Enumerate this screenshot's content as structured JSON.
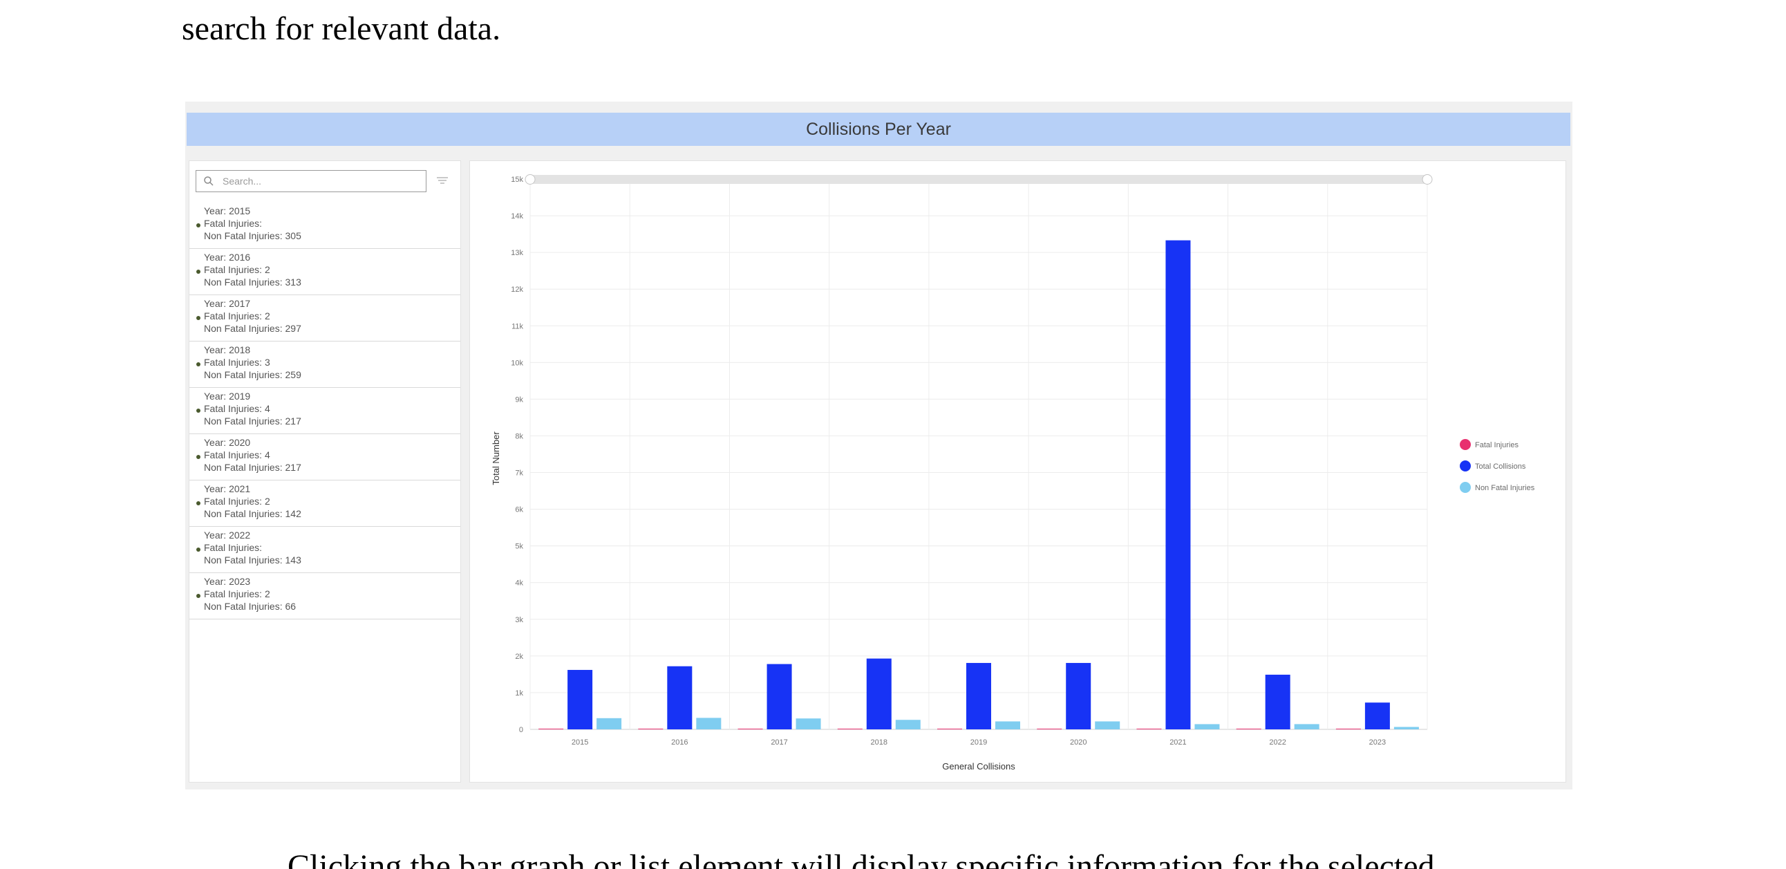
{
  "document": {
    "top_text": "search for relevant data.",
    "bottom_text": "Clicking the bar graph or list element will display specific information for the selected"
  },
  "dashboard": {
    "title": "Collisions Per Year",
    "search": {
      "placeholder": "Search..."
    },
    "list_items": [
      {
        "year_label": "Year: 2015",
        "fatal_label": "Fatal Injuries:",
        "fatal_value": "",
        "nonfatal_label": "Non Fatal Injuries: 305"
      },
      {
        "year_label": "Year: 2016",
        "fatal_label": "Fatal Injuries:",
        "fatal_value": "2",
        "nonfatal_label": "Non Fatal Injuries: 313"
      },
      {
        "year_label": "Year: 2017",
        "fatal_label": "Fatal Injuries:",
        "fatal_value": "2",
        "nonfatal_label": "Non Fatal Injuries: 297"
      },
      {
        "year_label": "Year: 2018",
        "fatal_label": "Fatal Injuries:",
        "fatal_value": "3",
        "nonfatal_label": "Non Fatal Injuries: 259"
      },
      {
        "year_label": "Year: 2019",
        "fatal_label": "Fatal Injuries:",
        "fatal_value": "4",
        "nonfatal_label": "Non Fatal Injuries: 217"
      },
      {
        "year_label": "Year: 2020",
        "fatal_label": "Fatal Injuries:",
        "fatal_value": "4",
        "nonfatal_label": "Non Fatal Injuries: 217"
      },
      {
        "year_label": "Year: 2021",
        "fatal_label": "Fatal Injuries:",
        "fatal_value": "2",
        "nonfatal_label": "Non Fatal Injuries: 142"
      },
      {
        "year_label": "Year: 2022",
        "fatal_label": "Fatal Injuries:",
        "fatal_value": "",
        "nonfatal_label": "Non Fatal Injuries: 143"
      },
      {
        "year_label": "Year: 2023",
        "fatal_label": "Fatal Injuries:",
        "fatal_value": "2",
        "nonfatal_label": "Non Fatal Injuries: 66"
      }
    ],
    "icons": {
      "search": "search-icon",
      "filter": "filter-icon",
      "scrollbar_grip": "grip-icon"
    }
  },
  "chart_data": {
    "type": "bar",
    "title": "",
    "xlabel": "General Collisions",
    "ylabel": "Total Number",
    "categories": [
      "2015",
      "2016",
      "2017",
      "2018",
      "2019",
      "2020",
      "2021",
      "2022",
      "2023"
    ],
    "ylim": [
      0,
      15000
    ],
    "yticks": [
      {
        "value": 0,
        "label": "0"
      },
      {
        "value": 1000,
        "label": "1k"
      },
      {
        "value": 2000,
        "label": "2k"
      },
      {
        "value": 3000,
        "label": "3k"
      },
      {
        "value": 4000,
        "label": "4k"
      },
      {
        "value": 5000,
        "label": "5k"
      },
      {
        "value": 6000,
        "label": "6k"
      },
      {
        "value": 7000,
        "label": "7k"
      },
      {
        "value": 8000,
        "label": "8k"
      },
      {
        "value": 9000,
        "label": "9k"
      },
      {
        "value": 10000,
        "label": "10k"
      },
      {
        "value": 11000,
        "label": "11k"
      },
      {
        "value": 12000,
        "label": "12k"
      },
      {
        "value": 13000,
        "label": "13k"
      },
      {
        "value": 14000,
        "label": "14k"
      },
      {
        "value": 15000,
        "label": "15k"
      }
    ],
    "grid": true,
    "legend_position": "right",
    "series": [
      {
        "name": "Fatal Injuries",
        "color": "#e8306f",
        "values": [
          0,
          2,
          2,
          3,
          4,
          4,
          2,
          0,
          2
        ]
      },
      {
        "name": "Total Collisions",
        "color": "#1733f5",
        "values": [
          1620,
          1720,
          1780,
          1930,
          1810,
          1810,
          13330,
          1490,
          730
        ]
      },
      {
        "name": "Non Fatal Injuries",
        "color": "#7fcdf0",
        "values": [
          305,
          313,
          297,
          259,
          217,
          217,
          142,
          143,
          66
        ]
      }
    ]
  }
}
